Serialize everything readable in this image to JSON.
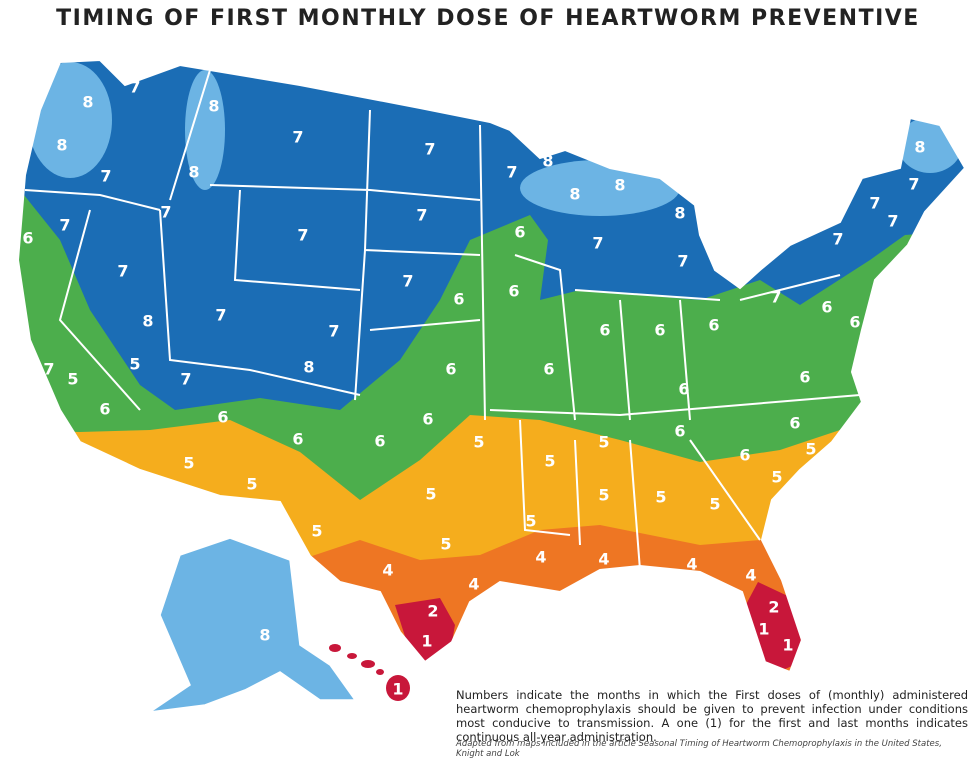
{
  "header": {
    "title": "TIMING OF FIRST MONTHLY DOSE OF HEARTWORM PREVENTIVE"
  },
  "map": {
    "labels": [
      "8",
      "7",
      "8",
      "8",
      "7",
      "7",
      "8",
      "8",
      "8",
      "8",
      "8",
      "7",
      "7",
      "7",
      "7",
      "8",
      "7",
      "7",
      "7",
      "7",
      "7",
      "6",
      "6",
      "7",
      "7",
      "7",
      "7",
      "7",
      "6",
      "6",
      "7",
      "6",
      "6",
      "8",
      "7",
      "7",
      "6",
      "6",
      "6",
      "5",
      "7",
      "5",
      "8",
      "6",
      "6",
      "6",
      "6",
      "7",
      "6",
      "6",
      "6",
      "6",
      "6",
      "6",
      "6",
      "5",
      "5",
      "6",
      "5",
      "5",
      "5",
      "5",
      "5",
      "5",
      "5",
      "5",
      "5",
      "5",
      "5",
      "5",
      "4",
      "4",
      "4",
      "4",
      "4",
      "4",
      "2",
      "2",
      "1",
      "1",
      "1",
      "8",
      "1"
    ]
  },
  "caption": {
    "text": "Numbers indicate the months in which the First doses of (monthly) administered heartworm chemoprophylaxis should be given to prevent infection under conditions most conducive to transmission. A one (1) for the first and last months indicates continuous all-year administration.",
    "source": "Adapted from maps included in the article Seasonal Timing of Heartworm Chemoprophylaxis in the United States, Knight and Lok"
  }
}
